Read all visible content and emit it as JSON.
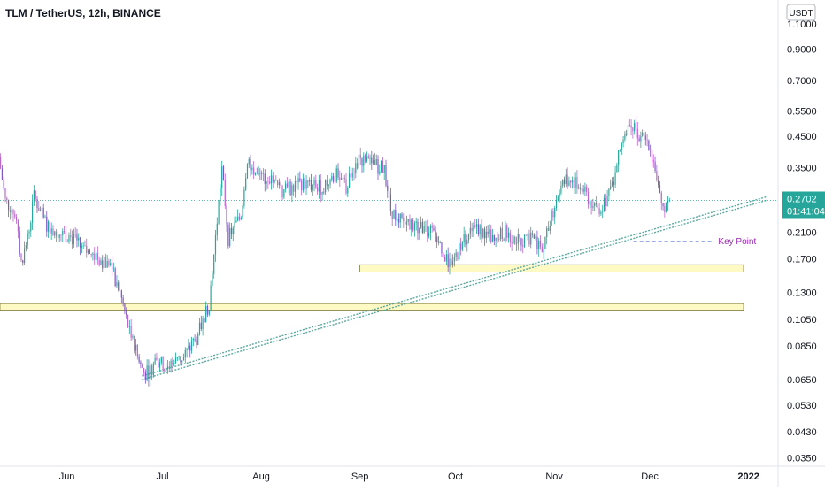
{
  "header": {
    "title": "TLM / TetherUS, 12h, BINANCE"
  },
  "currency_button": {
    "label": "USDT"
  },
  "price_tag": {
    "price": "0.2702",
    "countdown": "01:41:04"
  },
  "annotation": {
    "label": "Key Point"
  },
  "colors": {
    "up": "#26a69a",
    "down": "#ba68c8",
    "down_alt": "#7e57c2",
    "zone_fill": "#fff9c4",
    "zone_stroke": "#7a7a3a",
    "trendline": "#5aa9a0",
    "current_line": "#26a69a",
    "keypoint": "#9c27b0",
    "price_tag_bg": "#26a69a",
    "axis_text": "#131722"
  },
  "chart_data": {
    "type": "candlestick",
    "scale": "log",
    "ylim": [
      0.032,
      1.3
    ],
    "y_ticks": [
      "1.1000",
      "0.9000",
      "0.7000",
      "0.5500",
      "0.4500",
      "0.3500",
      "0.2702",
      "0.2100",
      "0.1700",
      "0.1300",
      "0.1050",
      "0.0850",
      "0.0650",
      "0.0530",
      "0.0430",
      "0.0350"
    ],
    "x_ticks": [
      "Jun",
      "Jul",
      "Aug",
      "Sep",
      "Oct",
      "Nov",
      "Dec",
      "2022"
    ],
    "x_range": [
      "2021-05-11",
      "2022-01-10"
    ],
    "current_price": 0.2702,
    "series_points": [
      [
        "2021-05-11",
        0.38
      ],
      [
        "2021-05-13",
        0.27
      ],
      [
        "2021-05-16",
        0.245
      ],
      [
        "2021-05-18",
        0.165
      ],
      [
        "2021-05-20",
        0.2
      ],
      [
        "2021-05-22",
        0.28
      ],
      [
        "2021-05-26",
        0.22
      ],
      [
        "2021-05-29",
        0.21
      ],
      [
        "2021-06-03",
        0.2
      ],
      [
        "2021-06-07",
        0.18
      ],
      [
        "2021-06-11",
        0.17
      ],
      [
        "2021-06-15",
        0.16
      ],
      [
        "2021-06-18",
        0.13
      ],
      [
        "2021-06-21",
        0.095
      ],
      [
        "2021-06-24",
        0.075
      ],
      [
        "2021-06-26",
        0.068
      ],
      [
        "2021-06-30",
        0.075
      ],
      [
        "2021-07-03",
        0.072
      ],
      [
        "2021-07-08",
        0.078
      ],
      [
        "2021-07-12",
        0.09
      ],
      [
        "2021-07-16",
        0.12
      ],
      [
        "2021-07-18",
        0.2
      ],
      [
        "2021-07-20",
        0.35
      ],
      [
        "2021-07-22",
        0.2
      ],
      [
        "2021-07-24",
        0.22
      ],
      [
        "2021-07-26",
        0.24
      ],
      [
        "2021-07-28",
        0.38
      ],
      [
        "2021-07-31",
        0.33
      ],
      [
        "2021-08-04",
        0.32
      ],
      [
        "2021-08-08",
        0.29
      ],
      [
        "2021-08-14",
        0.31
      ],
      [
        "2021-08-20",
        0.3
      ],
      [
        "2021-08-25",
        0.33
      ],
      [
        "2021-08-28",
        0.3
      ],
      [
        "2021-09-01",
        0.38
      ],
      [
        "2021-09-05",
        0.36
      ],
      [
        "2021-09-09",
        0.35
      ],
      [
        "2021-09-11",
        0.25
      ],
      [
        "2021-09-14",
        0.23
      ],
      [
        "2021-09-19",
        0.22
      ],
      [
        "2021-09-24",
        0.21
      ],
      [
        "2021-09-26",
        0.19
      ],
      [
        "2021-09-29",
        0.165
      ],
      [
        "2021-10-01",
        0.168
      ],
      [
        "2021-10-04",
        0.2
      ],
      [
        "2021-10-08",
        0.22
      ],
      [
        "2021-10-13",
        0.2
      ],
      [
        "2021-10-17",
        0.21
      ],
      [
        "2021-10-21",
        0.195
      ],
      [
        "2021-10-26",
        0.2
      ],
      [
        "2021-10-29",
        0.185
      ],
      [
        "2021-11-01",
        0.25
      ],
      [
        "2021-11-03",
        0.3
      ],
      [
        "2021-11-06",
        0.32
      ],
      [
        "2021-11-10",
        0.3
      ],
      [
        "2021-11-14",
        0.25
      ],
      [
        "2021-11-17",
        0.26
      ],
      [
        "2021-11-20",
        0.32
      ],
      [
        "2021-11-23",
        0.45
      ],
      [
        "2021-11-25",
        0.52
      ],
      [
        "2021-11-28",
        0.45
      ],
      [
        "2021-12-01",
        0.43
      ],
      [
        "2021-12-03",
        0.35
      ],
      [
        "2021-12-05",
        0.25
      ],
      [
        "2021-12-07",
        0.2702
      ]
    ],
    "zones": [
      {
        "from": "2021-09-01",
        "to": "2022-01-01",
        "low": 0.153,
        "high": 0.162
      },
      {
        "from": "2021-05-11",
        "to": "2022-01-01",
        "low": 0.113,
        "high": 0.119
      }
    ],
    "trendline": {
      "from": [
        "2021-06-24",
        0.066
      ],
      "to": [
        "2022-01-10",
        0.28
      ]
    },
    "key_point": {
      "date": "2021-12-07",
      "price": 0.195,
      "to": "2021-12-20"
    }
  }
}
